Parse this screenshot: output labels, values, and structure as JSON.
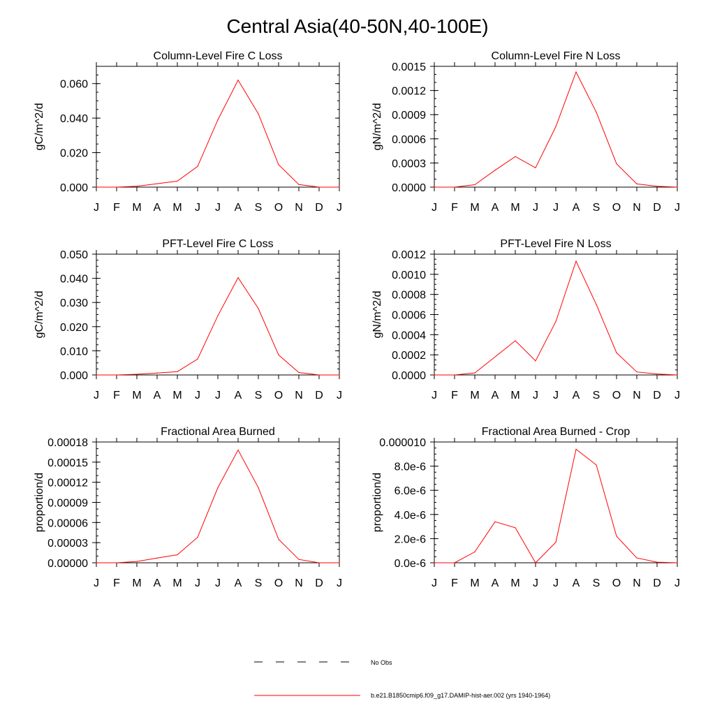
{
  "page_title": "Central Asia(40-50N,40-100E)",
  "x_tick_labels": [
    "J",
    "F",
    "M",
    "A",
    "M",
    "J",
    "J",
    "A",
    "S",
    "O",
    "N",
    "D",
    "J"
  ],
  "colors": {
    "model_line": "#ff0000",
    "obs_line": "#000000",
    "axis": "#000000"
  },
  "legend": {
    "obs_label": "No Obs",
    "model_label": "b.e21.B1850cmip6.f09_g17.DAMIP-hist-aer.002 (yrs 1940-1964)"
  },
  "chart_data": [
    {
      "type": "line",
      "title": "Column-Level Fire C Loss",
      "ylabel": "gC/m^2/d",
      "ylim": [
        0,
        0.07
      ],
      "yticks": [
        0,
        0.02,
        0.04,
        0.06
      ],
      "ytick_labels": [
        "0.000",
        "0.020",
        "0.040",
        "0.060"
      ],
      "y_minor": 0.005,
      "categories": [
        "J",
        "F",
        "M",
        "A",
        "M",
        "J",
        "J",
        "A",
        "S",
        "O",
        "N",
        "D",
        "J"
      ],
      "series": [
        {
          "name": "b.e21.B1850cmip6.f09_g17.DAMIP-hist-aer.002 (yrs 1940-1964)",
          "values": [
            0,
            0,
            0.0005,
            0.002,
            0.0035,
            0.012,
            0.039,
            0.062,
            0.0425,
            0.013,
            0.0015,
            0,
            0
          ]
        }
      ]
    },
    {
      "type": "line",
      "title": "Column-Level Fire N Loss",
      "ylabel": "gN/m^2/d",
      "ylim": [
        0,
        0.0015
      ],
      "yticks": [
        0,
        0.0003,
        0.0006,
        0.0009,
        0.0012,
        0.0015
      ],
      "ytick_labels": [
        "0.0000",
        "0.0003",
        "0.0006",
        "0.0009",
        "0.0012",
        "0.0015"
      ],
      "y_minor": 0.0001,
      "categories": [
        "J",
        "F",
        "M",
        "A",
        "M",
        "J",
        "J",
        "A",
        "S",
        "O",
        "N",
        "D",
        "J"
      ],
      "series": [
        {
          "name": "b.e21.B1850cmip6.f09_g17.DAMIP-hist-aer.002 (yrs 1940-1964)",
          "values": [
            0,
            0,
            3e-05,
            0.00021,
            0.00038,
            0.00024,
            0.00075,
            0.00143,
            0.00093,
            0.00029,
            4e-05,
            1e-05,
            0
          ]
        }
      ]
    },
    {
      "type": "line",
      "title": "PFT-Level Fire C Loss",
      "ylabel": "gC/m^2/d",
      "ylim": [
        0,
        0.05
      ],
      "yticks": [
        0,
        0.01,
        0.02,
        0.03,
        0.04,
        0.05
      ],
      "ytick_labels": [
        "0.000",
        "0.010",
        "0.020",
        "0.030",
        "0.040",
        "0.050"
      ],
      "y_minor": 0.0025,
      "categories": [
        "J",
        "F",
        "M",
        "A",
        "M",
        "J",
        "J",
        "A",
        "S",
        "O",
        "N",
        "D",
        "J"
      ],
      "series": [
        {
          "name": "b.e21.B1850cmip6.f09_g17.DAMIP-hist-aer.002 (yrs 1940-1964)",
          "values": [
            0,
            0,
            0.0003,
            0.0008,
            0.0014,
            0.0066,
            0.0245,
            0.0403,
            0.0275,
            0.0083,
            0.001,
            0,
            0
          ]
        }
      ]
    },
    {
      "type": "line",
      "title": "PFT-Level Fire N Loss",
      "ylabel": "gN/m^2/d",
      "ylim": [
        0,
        0.0012
      ],
      "yticks": [
        0,
        0.0002,
        0.0004,
        0.0006,
        0.0008,
        0.001,
        0.0012
      ],
      "ytick_labels": [
        "0.0000",
        "0.0002",
        "0.0004",
        "0.0006",
        "0.0008",
        "0.0010",
        "0.0012"
      ],
      "y_minor": 5e-05,
      "categories": [
        "J",
        "F",
        "M",
        "A",
        "M",
        "J",
        "J",
        "A",
        "S",
        "O",
        "N",
        "D",
        "J"
      ],
      "series": [
        {
          "name": "b.e21.B1850cmip6.f09_g17.DAMIP-hist-aer.002 (yrs 1940-1964)",
          "values": [
            0,
            0,
            2e-05,
            0.00018,
            0.00034,
            0.00014,
            0.00053,
            0.00113,
            0.0007,
            0.00022,
            3e-05,
            1e-05,
            0
          ]
        }
      ]
    },
    {
      "type": "line",
      "title": "Fractional Area Burned",
      "ylabel": "proportion/d",
      "ylim": [
        0,
        0.00018
      ],
      "yticks": [
        0,
        3e-05,
        6e-05,
        9e-05,
        0.00012,
        0.00015,
        0.00018
      ],
      "ytick_labels": [
        "0.00000",
        "0.00003",
        "0.00006",
        "0.00009",
        "0.00012",
        "0.00015",
        "0.00018"
      ],
      "y_minor": 1e-05,
      "categories": [
        "J",
        "F",
        "M",
        "A",
        "M",
        "J",
        "J",
        "A",
        "S",
        "O",
        "N",
        "D",
        "J"
      ],
      "series": [
        {
          "name": "b.e21.B1850cmip6.f09_g17.DAMIP-hist-aer.002 (yrs 1940-1964)",
          "values": [
            0,
            0,
            2e-06,
            7e-06,
            1.2e-05,
            3.8e-05,
            0.000112,
            0.000168,
            0.000112,
            3.5e-05,
            5e-06,
            0,
            0
          ]
        }
      ]
    },
    {
      "type": "line",
      "title": "Fractional Area Burned - Crop",
      "ylabel": "proportion/d",
      "ylim": [
        0,
        1e-05
      ],
      "yticks": [
        0,
        2e-06,
        4e-06,
        6e-06,
        8e-06,
        1e-05
      ],
      "ytick_labels": [
        "0.0e-6",
        "2.0e-6",
        "4.0e-6",
        "6.0e-6",
        "8.0e-6",
        "0.000010"
      ],
      "y_minor": 5e-07,
      "categories": [
        "J",
        "F",
        "M",
        "A",
        "M",
        "J",
        "J",
        "A",
        "S",
        "O",
        "N",
        "D",
        "J"
      ],
      "series": [
        {
          "name": "b.e21.B1850cmip6.f09_g17.DAMIP-hist-aer.002 (yrs 1940-1964)",
          "values": [
            0,
            0,
            9e-07,
            3.4e-06,
            2.9e-06,
            0,
            1.7e-06,
            9.4e-06,
            8.1e-06,
            2.2e-06,
            4e-07,
            5e-08,
            0
          ]
        }
      ]
    }
  ]
}
